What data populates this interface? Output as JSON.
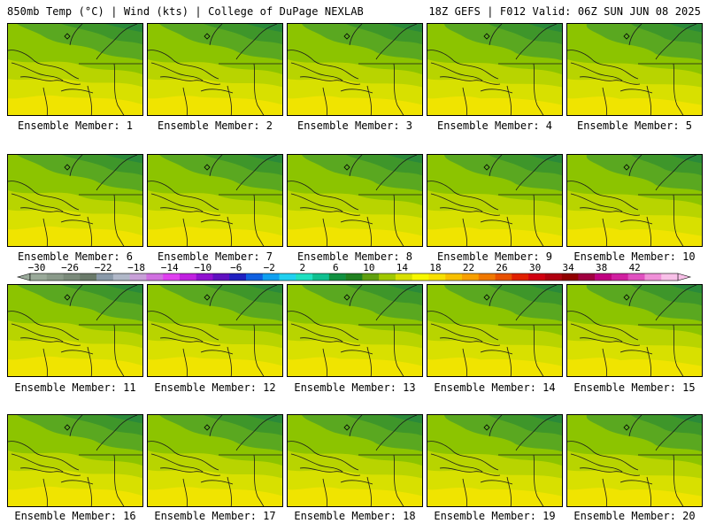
{
  "header": {
    "left_title": "850mb Temp (°C) | Wind (kts) | College of DuPage NEXLAB",
    "right_title": "18Z GEFS | F012 Valid: 06Z SUN JUN 08 2025"
  },
  "panels": [
    {
      "label": "Ensemble Member: 1"
    },
    {
      "label": "Ensemble Member: 2"
    },
    {
      "label": "Ensemble Member: 3"
    },
    {
      "label": "Ensemble Member: 4"
    },
    {
      "label": "Ensemble Member: 5"
    },
    {
      "label": "Ensemble Member: 6"
    },
    {
      "label": "Ensemble Member: 7"
    },
    {
      "label": "Ensemble Member: 8"
    },
    {
      "label": "Ensemble Member: 9"
    },
    {
      "label": "Ensemble Member: 10"
    },
    {
      "label": "Ensemble Member: 11"
    },
    {
      "label": "Ensemble Member: 12"
    },
    {
      "label": "Ensemble Member: 13"
    },
    {
      "label": "Ensemble Member: 14"
    },
    {
      "label": "Ensemble Member: 15"
    },
    {
      "label": "Ensemble Member: 16"
    },
    {
      "label": "Ensemble Member: 17"
    },
    {
      "label": "Ensemble Member: 18"
    },
    {
      "label": "Ensemble Member: 19"
    },
    {
      "label": "Ensemble Member: 20"
    }
  ],
  "colorbar": {
    "tick_labels": [
      "−30",
      "−26",
      "−22",
      "−18",
      "−14",
      "−10",
      "−6",
      "−2",
      "2",
      "6",
      "10",
      "14",
      "18",
      "22",
      "26",
      "30",
      "34",
      "38",
      "42"
    ],
    "colors": [
      "#9aaa9a",
      "#8a9a8a",
      "#7a8a7a",
      "#6a7a6a",
      "#8a9aaa",
      "#b0b8c8",
      "#c8a0d8",
      "#d070e0",
      "#e040f0",
      "#c020e0",
      "#9010d0",
      "#6010c0",
      "#2020c0",
      "#1060e0",
      "#10a0f0",
      "#20d0f0",
      "#20e0c0",
      "#10c090",
      "#109040",
      "#208020",
      "#60a010",
      "#a0c800",
      "#d8e000",
      "#f8f800",
      "#f8e000",
      "#f8c000",
      "#f8a000",
      "#f07800",
      "#e85000",
      "#e02000",
      "#d00010",
      "#b00010",
      "#900000",
      "#a00040",
      "#c00080",
      "#d020a0",
      "#e050c0",
      "#f090d8",
      "#f8c0e8"
    ]
  }
}
